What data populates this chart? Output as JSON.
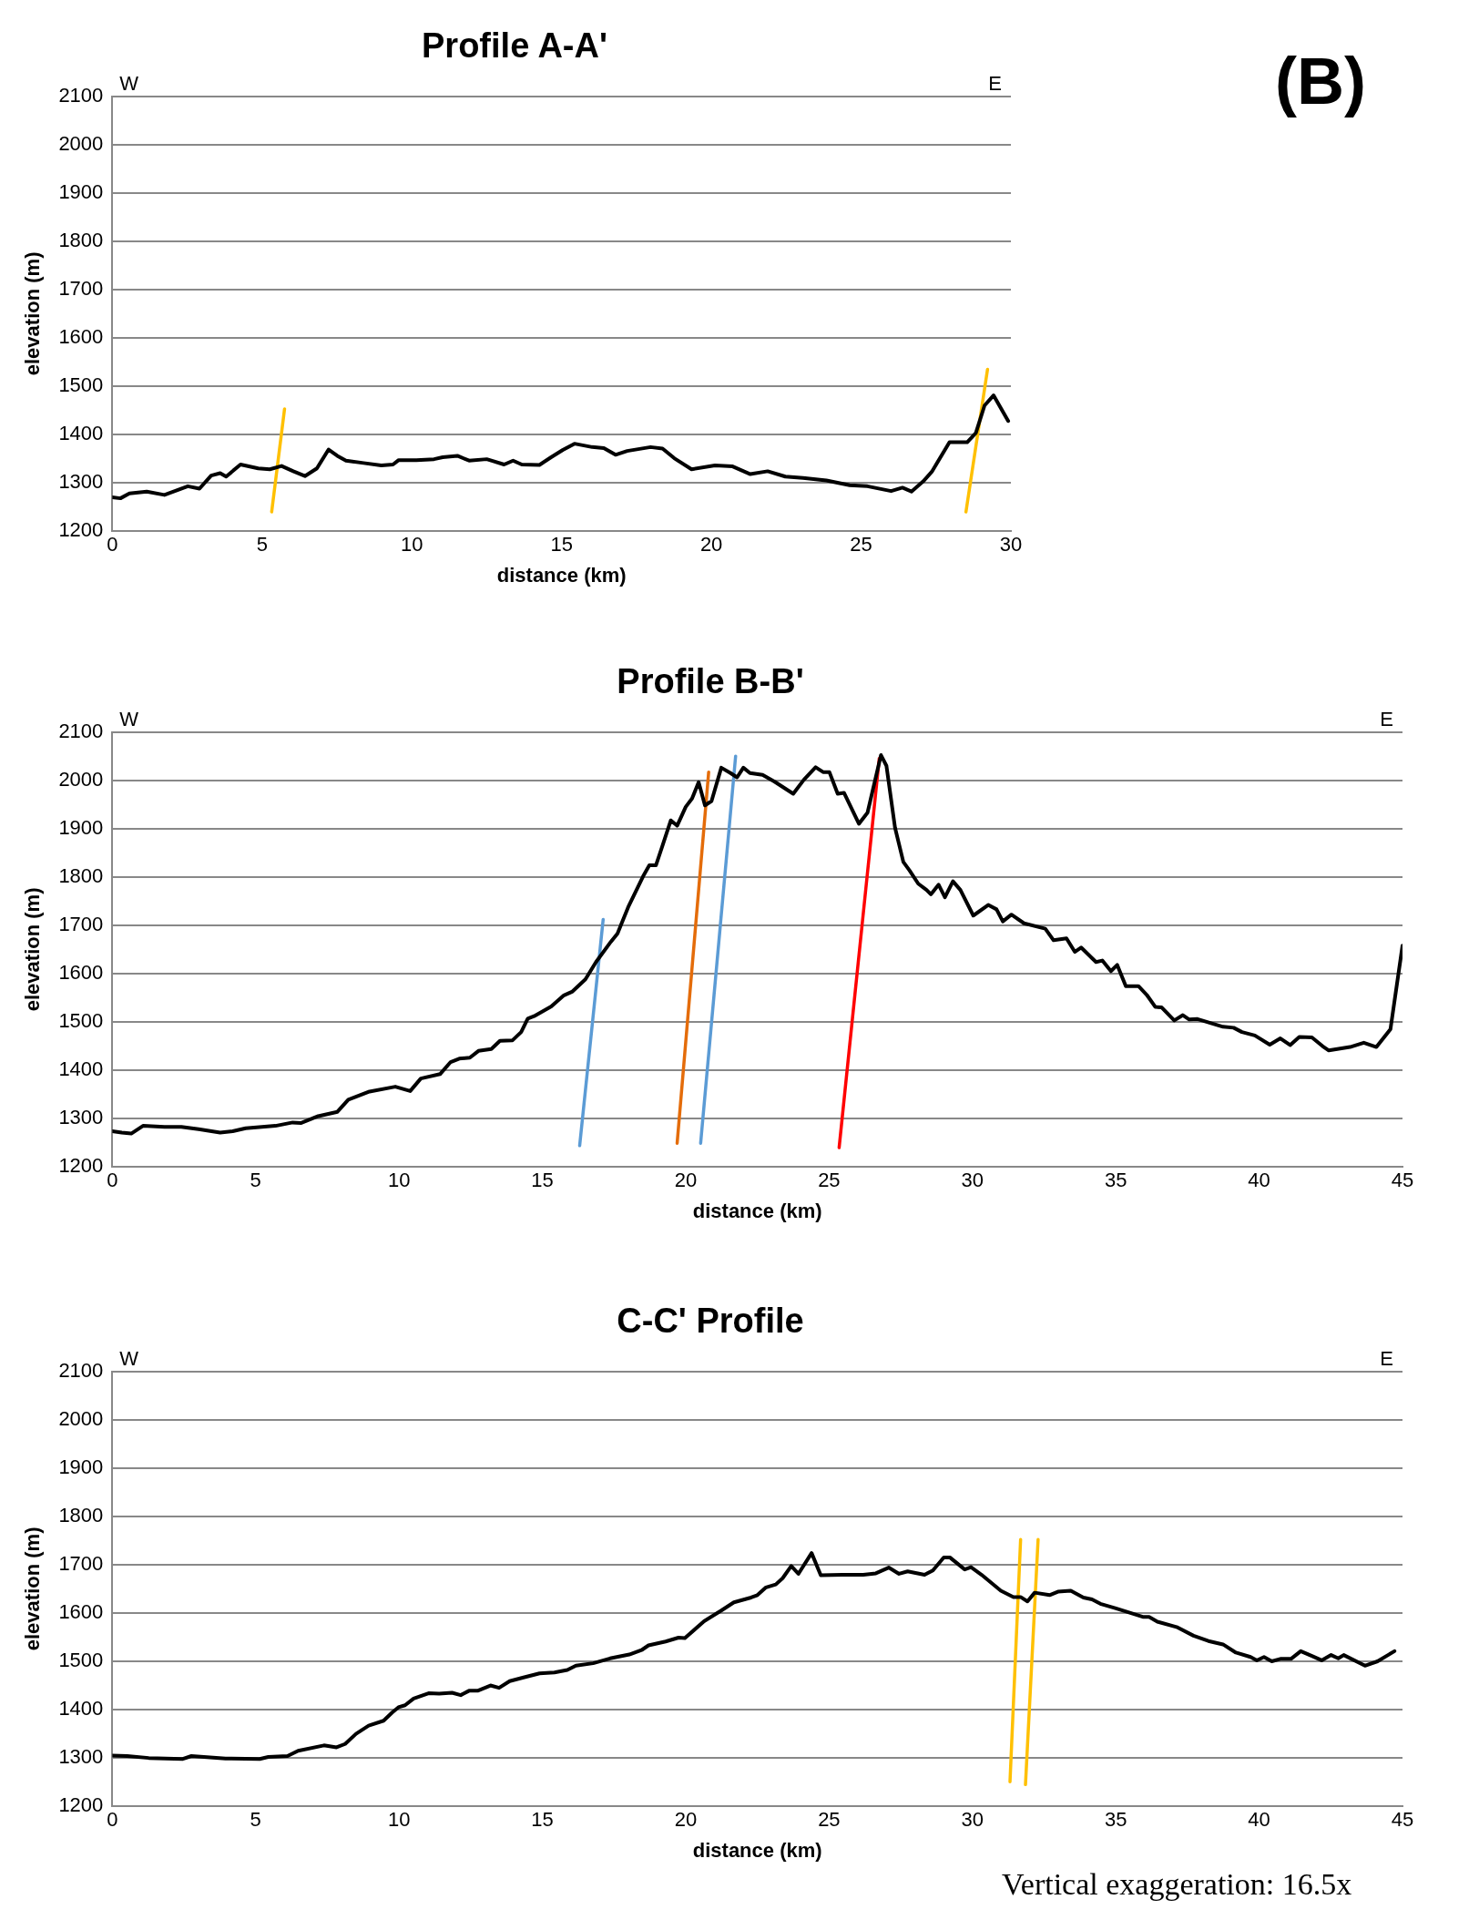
{
  "chart_data": [
    {
      "type": "line",
      "title": "Profile A-A'",
      "xlabel": "distance (km)",
      "ylabel": "elevation (m)",
      "annotations": [
        "W",
        "E",
        "(B)"
      ],
      "xlim": [
        0,
        30
      ],
      "xticks": [
        0,
        5,
        10,
        15,
        20,
        25,
        30
      ],
      "ylim": [
        1200,
        2100
      ],
      "yticks": [
        1200,
        1300,
        1400,
        1500,
        1600,
        1700,
        1800,
        1900,
        2000,
        2100
      ],
      "grid": "y",
      "legend": false,
      "marker": "none",
      "line_style": "solid",
      "series": [
        {
          "color": "#000000",
          "x": [
            0,
            0.27,
            0.57,
            1.15,
            1.74,
            2.13,
            2.52,
            2.91,
            3.3,
            3.6,
            3.8,
            4.28,
            4.87,
            5.26,
            5.65,
            6.04,
            6.43,
            6.83,
            7.22,
            7.51,
            7.8,
            8.39,
            8.98,
            9.37,
            9.56,
            10.15,
            10.74,
            11.03,
            11.52,
            11.91,
            12.5,
            13.08,
            13.38,
            13.67,
            14.26,
            14.65,
            15.04,
            15.43,
            16.02,
            16.41,
            16.8,
            17.19,
            17.97,
            18.37,
            18.76,
            19.34,
            20.12,
            20.71,
            21.3,
            21.88,
            22.47,
            23.06,
            23.84,
            24.62,
            25.21,
            26,
            26.38,
            26.68,
            27.07,
            27.36,
            27.95,
            28.54,
            28.83,
            29.12,
            29.42,
            29.91
          ],
          "values": [
            1270,
            1268,
            1278,
            1282,
            1275,
            1284,
            1293,
            1288,
            1315,
            1320,
            1313,
            1338,
            1330,
            1328,
            1335,
            1324,
            1314,
            1330,
            1369,
            1356,
            1346,
            1341,
            1336,
            1338,
            1347,
            1347,
            1349,
            1353,
            1356,
            1346,
            1349,
            1338,
            1346,
            1338,
            1337,
            1353,
            1368,
            1381,
            1374,
            1372,
            1358,
            1366,
            1374,
            1371,
            1351,
            1328,
            1336,
            1334,
            1318,
            1324,
            1313,
            1310,
            1305,
            1295,
            1293,
            1283,
            1290,
            1282,
            1303,
            1323,
            1384,
            1384,
            1403,
            1460,
            1481,
            1428
          ]
        },
        {
          "type": "line",
          "color": "#ffc000",
          "x": [
            5.75,
            5.32
          ],
          "values": [
            1453,
            1240
          ]
        },
        {
          "type": "line",
          "color": "#ffc000",
          "x": [
            29.22,
            28.5
          ],
          "values": [
            1535,
            1240
          ]
        }
      ]
    },
    {
      "type": "line",
      "title": "Profile B-B'",
      "xlabel": "distance (km)",
      "ylabel": "elevation (m)",
      "annotations": [
        "W",
        "E"
      ],
      "xlim": [
        0,
        45
      ],
      "xticks": [
        0,
        5,
        10,
        15,
        20,
        25,
        30,
        35,
        40,
        45
      ],
      "ylim": [
        1200,
        2100
      ],
      "yticks": [
        1200,
        1300,
        1400,
        1500,
        1600,
        1700,
        1800,
        1900,
        2000,
        2100
      ],
      "grid": "y",
      "legend": false,
      "marker": "none",
      "line_style": "solid",
      "series": [
        {
          "color": "#000000",
          "x": [
            0,
            0.33,
            0.66,
            1.07,
            1.82,
            2.41,
            3.01,
            3.76,
            4.2,
            4.65,
            5.69,
            6.29,
            6.59,
            7.18,
            7.85,
            8.23,
            8.97,
            9.87,
            10.39,
            10.76,
            11.43,
            11.8,
            12.1,
            12.47,
            12.77,
            13.22,
            13.52,
            13.96,
            14.26,
            14.49,
            14.71,
            15.31,
            15.75,
            16.05,
            16.5,
            16.87,
            17.39,
            17.62,
            17.99,
            18.51,
            18.73,
            18.96,
            19.18,
            19.48,
            19.7,
            20,
            20.22,
            20.45,
            20.67,
            20.9,
            21.24,
            21.56,
            21.79,
            22.01,
            22.24,
            22.68,
            23.1,
            23.75,
            24.12,
            24.53,
            24.79,
            25.01,
            25.3,
            25.52,
            26.04,
            26.34,
            26.81,
            27,
            27.3,
            27.59,
            27.81,
            28.11,
            28.4,
            28.55,
            28.82,
            29.04,
            29.32,
            29.58,
            30.03,
            30.55,
            30.84,
            31.06,
            31.36,
            31.8,
            32.54,
            32.83,
            33.28,
            33.57,
            33.79,
            34.31,
            34.53,
            34.83,
            35.05,
            35.35,
            35.79,
            36.08,
            36.38,
            36.6,
            37.04,
            37.34,
            37.56,
            37.85,
            38.74,
            39.11,
            39.4,
            39.85,
            40.37,
            40.74,
            41.08,
            41.4,
            41.84,
            42.21,
            42.43,
            43.17,
            43.65,
            44.09,
            44.58,
            45
          ],
          "values": [
            1274,
            1271,
            1269,
            1285,
            1283,
            1283,
            1278,
            1271,
            1274,
            1280,
            1285,
            1292,
            1291,
            1305,
            1314,
            1339,
            1356,
            1366,
            1357,
            1383,
            1392,
            1417,
            1424,
            1426,
            1440,
            1444,
            1461,
            1462,
            1479,
            1507,
            1512,
            1532,
            1555,
            1563,
            1588,
            1624,
            1666,
            1683,
            1737,
            1801,
            1824,
            1824,
            1863,
            1917,
            1906,
            1945,
            1962,
            1996,
            1948,
            1957,
            2026,
            2015,
            2006,
            2026,
            2015,
            2011,
            1997,
            1972,
            2001,
            2027,
            2017,
            2017,
            1972,
            1974,
            1910,
            1933,
            2052,
            2030,
            1902,
            1831,
            1813,
            1786,
            1773,
            1764,
            1784,
            1758,
            1791,
            1773,
            1720,
            1742,
            1733,
            1708,
            1722,
            1704,
            1693,
            1669,
            1673,
            1645,
            1654,
            1624,
            1627,
            1605,
            1618,
            1574,
            1574,
            1556,
            1531,
            1530,
            1503,
            1514,
            1505,
            1506,
            1490,
            1488,
            1479,
            1472,
            1453,
            1466,
            1452,
            1469,
            1468,
            1450,
            1441,
            1448,
            1457,
            1448,
            1485,
            1658
          ]
        },
        {
          "type": "line",
          "color": "#5b9bd5",
          "x": [
            17.12,
            16.3
          ],
          "values": [
            1712,
            1244
          ]
        },
        {
          "type": "line",
          "color": "#e46c0a",
          "x": [
            20.8,
            19.7
          ],
          "values": [
            2017,
            1249
          ]
        },
        {
          "type": "line",
          "color": "#5b9bd5",
          "x": [
            21.74,
            20.52
          ],
          "values": [
            2050,
            1249
          ]
        },
        {
          "type": "line",
          "color": "#ff0000",
          "x": [
            26.75,
            25.35
          ],
          "values": [
            2045,
            1240
          ]
        }
      ]
    },
    {
      "type": "line",
      "title": "C-C' Profile",
      "xlabel": "distance (km)",
      "ylabel": "elevation (m)",
      "annotations": [
        "W",
        "E",
        "Vertical exaggeration: 16.5x"
      ],
      "xlim": [
        0,
        45
      ],
      "xticks": [
        0,
        5,
        10,
        15,
        20,
        25,
        30,
        35,
        40,
        45
      ],
      "ylim": [
        1200,
        2100
      ],
      "yticks": [
        1200,
        1300,
        1400,
        1500,
        1600,
        1700,
        1800,
        1900,
        2000,
        2100
      ],
      "grid": "y",
      "legend": false,
      "marker": "none",
      "line_style": "solid",
      "series": [
        {
          "color": "#000000",
          "x": [
            0,
            0.52,
            1.27,
            2.46,
            2.76,
            3.95,
            5.14,
            5.44,
            6.11,
            6.48,
            7.38,
            7.82,
            8.12,
            8.5,
            8.94,
            9.46,
            9.76,
            9.98,
            10.21,
            10.51,
            11.03,
            11.4,
            11.85,
            12.15,
            12.44,
            12.74,
            13.19,
            13.49,
            13.86,
            14.31,
            14.9,
            15.42,
            15.87,
            16.17,
            16.77,
            17.36,
            18.03,
            18.48,
            18.7,
            19.3,
            19.75,
            19.97,
            20.64,
            21.24,
            21.68,
            22.28,
            22.5,
            22.8,
            23.14,
            23.38,
            23.68,
            23.93,
            24.39,
            24.71,
            25.45,
            26.19,
            26.63,
            27.08,
            27.44,
            27.74,
            28.33,
            28.62,
            29,
            29.21,
            29.73,
            29.95,
            30.32,
            30.99,
            31.43,
            31.68,
            31.92,
            32.17,
            32.69,
            32.98,
            33.43,
            33.87,
            34.17,
            34.46,
            34.98,
            35.94,
            36.16,
            36.45,
            37.12,
            37.71,
            38.23,
            38.74,
            39.19,
            39.7,
            39.92,
            40.17,
            40.44,
            40.74,
            41.11,
            41.45,
            41.84,
            42.18,
            42.51,
            42.76,
            42.95,
            43.69,
            44.13,
            44.72
          ],
          "values": [
            1305,
            1304,
            1300,
            1298,
            1304,
            1299,
            1298,
            1302,
            1304,
            1315,
            1326,
            1322,
            1329,
            1350,
            1367,
            1377,
            1394,
            1405,
            1409,
            1423,
            1434,
            1433,
            1435,
            1430,
            1439,
            1439,
            1450,
            1445,
            1459,
            1466,
            1475,
            1477,
            1482,
            1491,
            1496,
            1506,
            1514,
            1524,
            1533,
            1541,
            1549,
            1548,
            1583,
            1605,
            1622,
            1632,
            1637,
            1653,
            1659,
            1672,
            1697,
            1681,
            1724,
            1678,
            1679,
            1679,
            1682,
            1694,
            1681,
            1686,
            1679,
            1688,
            1715,
            1715,
            1690,
            1695,
            1679,
            1646,
            1633,
            1633,
            1624,
            1642,
            1637,
            1644,
            1646,
            1632,
            1628,
            1619,
            1610,
            1592,
            1592,
            1582,
            1571,
            1553,
            1542,
            1535,
            1518,
            1509,
            1502,
            1509,
            1500,
            1505,
            1505,
            1521,
            1511,
            1502,
            1513,
            1506,
            1513,
            1491,
            1500,
            1521
          ]
        },
        {
          "type": "line",
          "color": "#ffc000",
          "x": [
            31.68,
            31.31
          ],
          "values": [
            1752,
            1251
          ]
        },
        {
          "type": "line",
          "color": "#ffc000",
          "x": [
            32.29,
            31.85
          ],
          "values": [
            1752,
            1245
          ]
        }
      ]
    }
  ]
}
